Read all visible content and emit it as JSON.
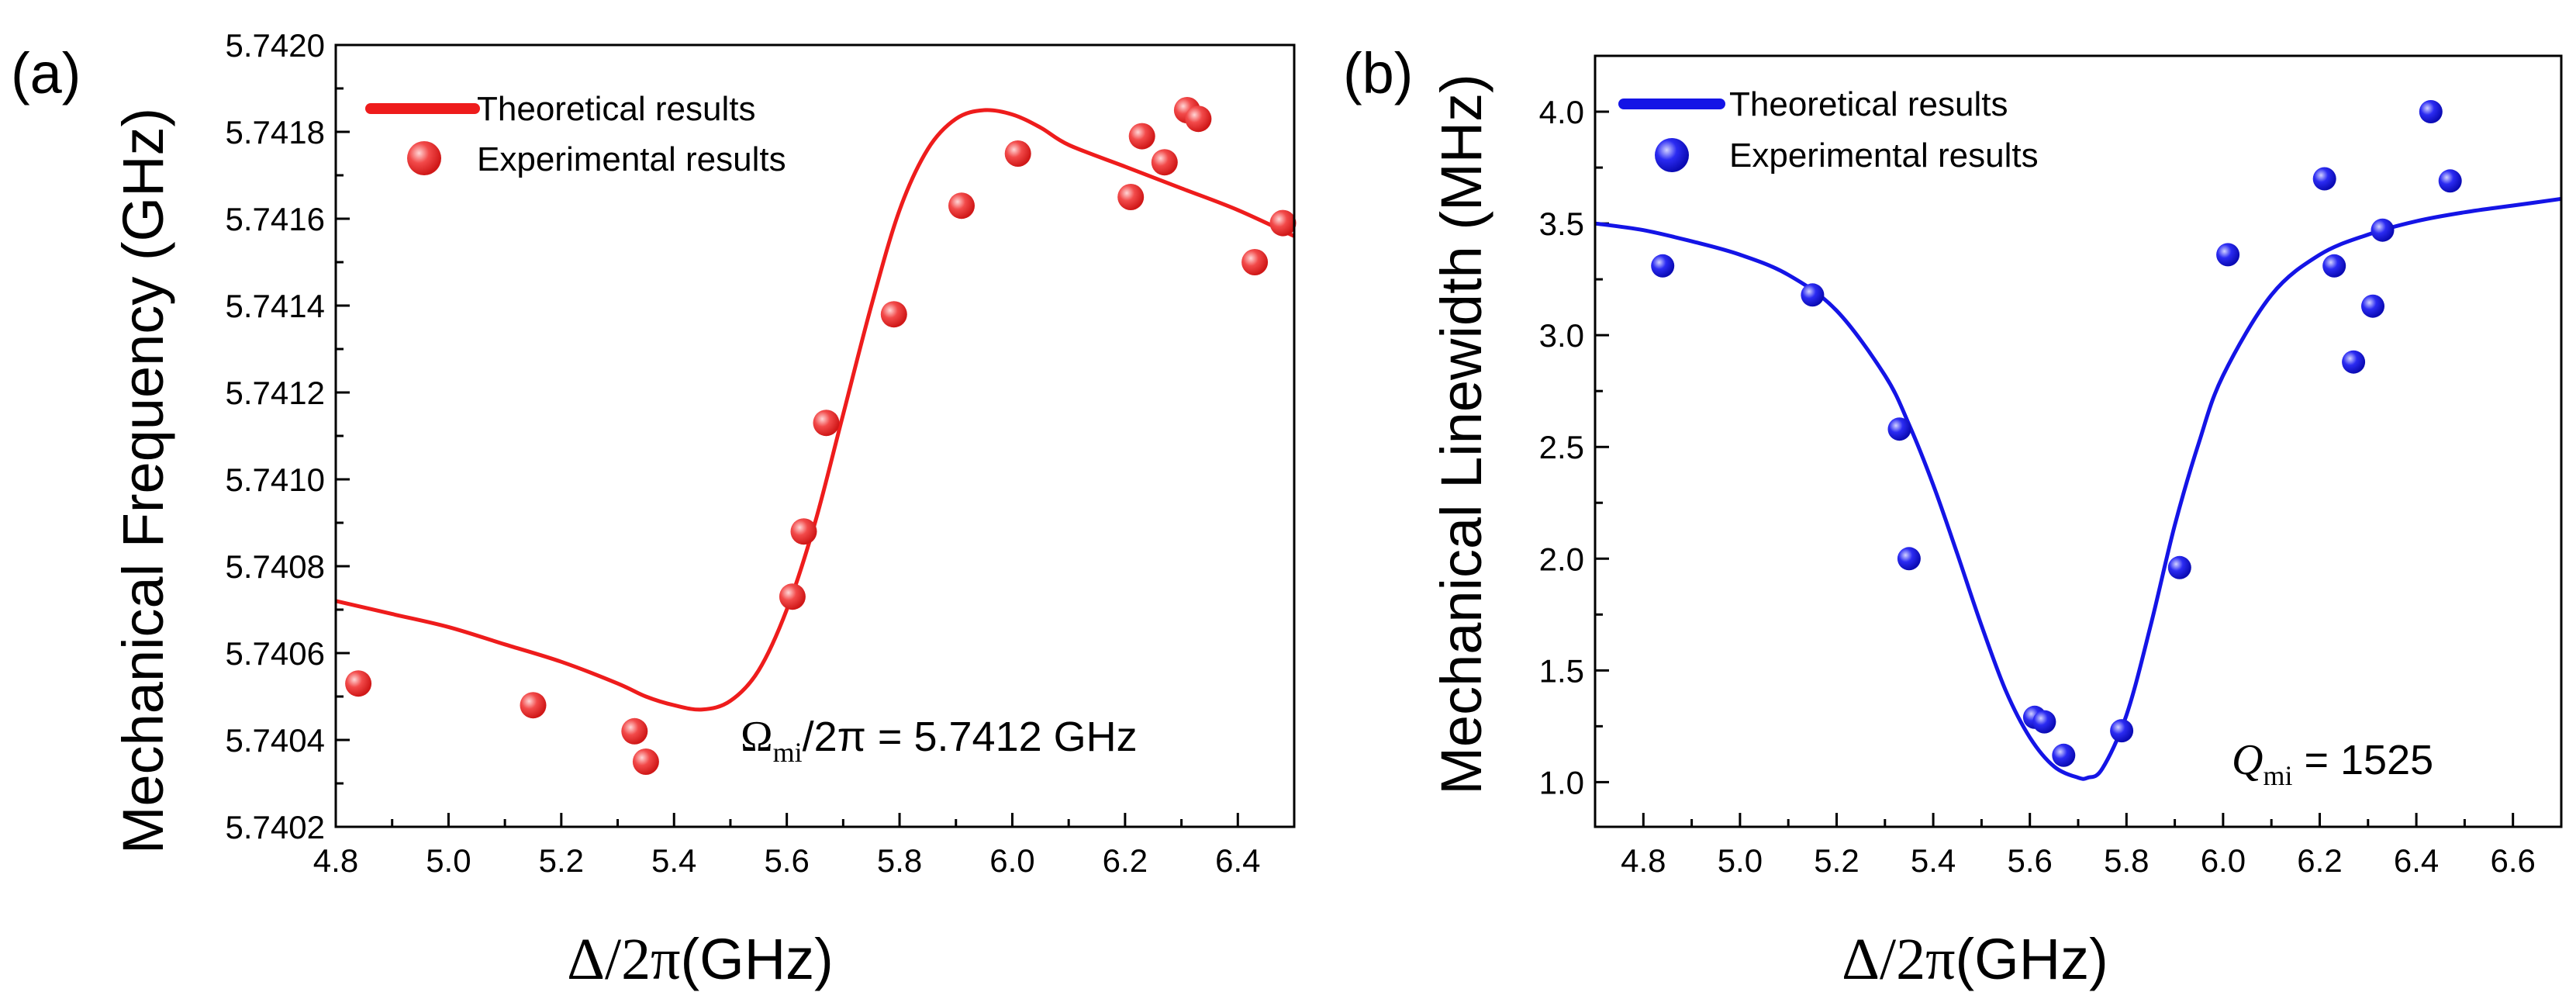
{
  "chart_data": [
    {
      "panel_label": "(a)",
      "type": "scatter",
      "color": "#ee1c1c",
      "xlabel": "Δ/2π (GHz)",
      "xlabel_symbol": "Δ/2π",
      "xlabel_unit": "(GHz)",
      "ylabel": "Mechanical Frequency (GHz)",
      "xlim": [
        4.8,
        6.5
      ],
      "ylim": [
        5.7402,
        5.742
      ],
      "xticks": [
        "4.8",
        "5.0",
        "5.2",
        "5.4",
        "5.6",
        "5.8",
        "6.0",
        "6.2",
        "6.4"
      ],
      "yticks": [
        "5.7402",
        "5.7404",
        "5.7406",
        "5.7408",
        "5.7410",
        "5.7412",
        "5.7414",
        "5.7416",
        "5.7418",
        "5.7420"
      ],
      "legend": {
        "position": "top-left",
        "line_label": "Theoretical results",
        "marker_label": "Experimental results"
      },
      "annotation": {
        "symbol": "Ω",
        "subscript": "mi",
        "rest": "/2π = 5.7412 GHz"
      },
      "series": [
        {
          "name": "Theoretical results",
          "kind": "line",
          "x": [
            4.8,
            4.9,
            5.0,
            5.1,
            5.2,
            5.3,
            5.35,
            5.4,
            5.45,
            5.5,
            5.55,
            5.6,
            5.65,
            5.7,
            5.75,
            5.8,
            5.85,
            5.9,
            5.95,
            6.0,
            6.05,
            6.1,
            6.2,
            6.3,
            6.4,
            6.5
          ],
          "y": [
            5.74072,
            5.74069,
            5.74066,
            5.74062,
            5.74058,
            5.74053,
            5.7405,
            5.74048,
            5.74047,
            5.74049,
            5.74056,
            5.7407,
            5.7409,
            5.74115,
            5.7414,
            5.74162,
            5.74176,
            5.74183,
            5.74185,
            5.74184,
            5.74181,
            5.74177,
            5.74172,
            5.74167,
            5.74162,
            5.74156
          ]
        },
        {
          "name": "Experimental results",
          "kind": "scatter",
          "x": [
            4.84,
            5.15,
            5.33,
            5.35,
            5.61,
            5.63,
            5.67,
            5.79,
            5.91,
            6.01,
            6.21,
            6.23,
            6.27,
            6.31,
            6.33,
            6.43,
            6.48
          ],
          "y": [
            5.74053,
            5.74048,
            5.74042,
            5.74035,
            5.74073,
            5.74088,
            5.74113,
            5.74138,
            5.74163,
            5.74175,
            5.74165,
            5.74179,
            5.74173,
            5.74185,
            5.74183,
            5.7415,
            5.74159
          ]
        }
      ]
    },
    {
      "panel_label": "(b)",
      "type": "scatter",
      "color": "#1414e6",
      "xlabel": "Δ/2π (GHz)",
      "xlabel_symbol": "Δ/2π",
      "xlabel_unit": "(GHz)",
      "ylabel": "Mechanical Linewidth (MHz)",
      "xlim": [
        4.7,
        6.7
      ],
      "ylim": [
        0.8,
        4.25
      ],
      "xticks": [
        "4.8",
        "5.0",
        "5.2",
        "5.4",
        "5.6",
        "5.8",
        "6.0",
        "6.2",
        "6.4",
        "6.6"
      ],
      "yticks": [
        "1.0",
        "1.5",
        "2.0",
        "2.5",
        "3.0",
        "3.5",
        "4.0"
      ],
      "legend": {
        "position": "top-left",
        "line_label": "Theoretical results",
        "marker_label": "Experimental results"
      },
      "annotation": {
        "symbol": "Q",
        "subscript": "mi",
        "rest": " = 1525"
      },
      "series": [
        {
          "name": "Theoretical results",
          "kind": "line",
          "x": [
            4.7,
            4.8,
            4.9,
            5.0,
            5.1,
            5.2,
            5.3,
            5.35,
            5.4,
            5.45,
            5.5,
            5.55,
            5.6,
            5.65,
            5.7,
            5.72,
            5.75,
            5.8,
            5.85,
            5.9,
            5.95,
            6.0,
            6.1,
            6.2,
            6.3,
            6.4,
            6.5,
            6.6,
            6.7
          ],
          "y": [
            3.5,
            3.47,
            3.42,
            3.36,
            3.27,
            3.11,
            2.82,
            2.6,
            2.33,
            2.02,
            1.7,
            1.41,
            1.2,
            1.07,
            1.02,
            1.02,
            1.06,
            1.3,
            1.7,
            2.15,
            2.52,
            2.82,
            3.18,
            3.36,
            3.45,
            3.51,
            3.55,
            3.58,
            3.61
          ]
        },
        {
          "name": "Experimental results",
          "kind": "scatter",
          "x": [
            4.84,
            5.15,
            5.33,
            5.35,
            5.61,
            5.63,
            5.67,
            5.79,
            5.91,
            6.01,
            6.21,
            6.23,
            6.27,
            6.31,
            6.33,
            6.43,
            6.47
          ],
          "y": [
            3.31,
            3.18,
            2.58,
            2.0,
            1.29,
            1.27,
            1.12,
            1.23,
            1.96,
            3.36,
            3.7,
            3.31,
            2.88,
            3.13,
            3.47,
            4.0,
            3.69
          ]
        }
      ]
    }
  ]
}
